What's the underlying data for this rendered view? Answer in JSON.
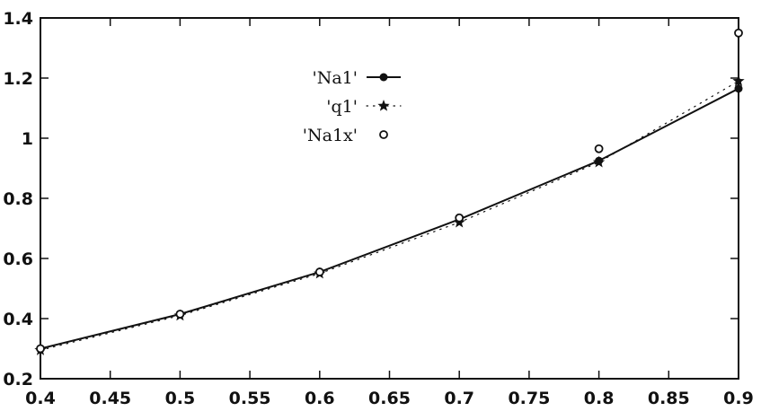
{
  "chart_data": {
    "type": "line",
    "title": "",
    "xlabel": "",
    "ylabel": "",
    "xlim": [
      0.4,
      0.9
    ],
    "ylim": [
      0.2,
      1.4
    ],
    "x_ticks": [
      "0.4",
      "0.45",
      "0.5",
      "0.55",
      "0.6",
      "0.65",
      "0.7",
      "0.75",
      "0.8",
      "0.85",
      "0.9"
    ],
    "y_ticks": [
      "0.2",
      "0.4",
      "0.6",
      "0.8",
      "1",
      "1.2",
      "1.4"
    ],
    "grid": false,
    "legend_position": "top-center",
    "series": [
      {
        "name": "'Na1'",
        "style": "solid line with filled circle markers",
        "color": "#111111",
        "x": [
          0.4,
          0.5,
          0.6,
          0.7,
          0.8,
          0.9
        ],
        "y": [
          0.3,
          0.415,
          0.555,
          0.73,
          0.925,
          1.165
        ]
      },
      {
        "name": "'q1'",
        "style": "dotted line with star markers",
        "color": "#111111",
        "x": [
          0.4,
          0.5,
          0.6,
          0.7,
          0.8,
          0.9
        ],
        "y": [
          0.295,
          0.41,
          0.55,
          0.72,
          0.92,
          1.19
        ]
      },
      {
        "name": "'Na1x'",
        "style": "open circle markers",
        "color": "#111111",
        "x": [
          0.4,
          0.5,
          0.6,
          0.7,
          0.8,
          0.9
        ],
        "y": [
          0.3,
          0.415,
          0.555,
          0.735,
          0.965,
          1.35
        ]
      }
    ]
  }
}
